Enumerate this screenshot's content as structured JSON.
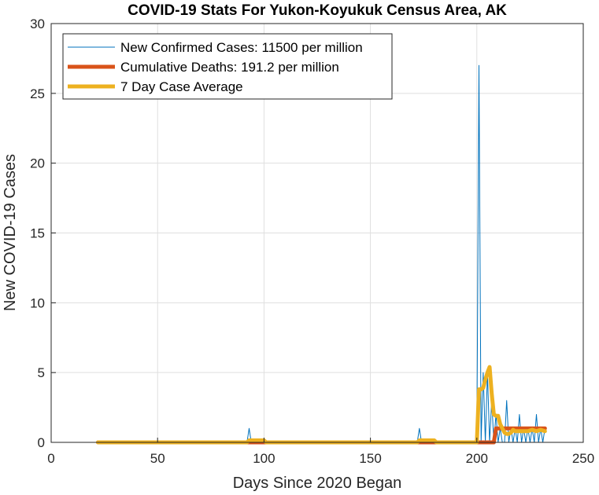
{
  "chart_data": {
    "type": "line",
    "title": "COVID-19 Stats For Yukon-Koyukuk Census Area, AK",
    "xlabel": "Days Since 2020 Began",
    "ylabel": "New COVID-19 Cases",
    "xlim": [
      0,
      250
    ],
    "ylim": [
      0,
      30
    ],
    "xticks": [
      0,
      50,
      100,
      150,
      200,
      250
    ],
    "yticks": [
      0,
      5,
      10,
      15,
      20,
      25,
      30
    ],
    "grid": true,
    "legend_position": "top-left",
    "series": [
      {
        "name": "New Confirmed Cases: 11500 per million",
        "color": "#0072BD",
        "width": 1,
        "x": [
          22,
          92,
          93,
          94,
          172,
          173,
          174,
          199,
          200,
          201,
          202,
          203,
          204,
          205,
          206,
          207,
          208,
          209,
          210,
          211,
          212,
          213,
          214,
          215,
          216,
          217,
          218,
          219,
          220,
          221,
          222,
          223,
          224,
          225,
          226,
          227,
          228,
          229,
          230,
          231,
          232
        ],
        "y": [
          0,
          0,
          1,
          0,
          0,
          1,
          0,
          0,
          0,
          27,
          0,
          5,
          0,
          5,
          0,
          3,
          0,
          2,
          0,
          1,
          0,
          0,
          3,
          0,
          1,
          0,
          1,
          0,
          2,
          0,
          1,
          0,
          1,
          0,
          1,
          0,
          2,
          0,
          1,
          0,
          1
        ]
      },
      {
        "name": "Cumulative Deaths: 191.2 per million",
        "color": "#D95319",
        "width": 5,
        "x": [
          22,
          92,
          93,
          96,
          97,
          172,
          173,
          176,
          177,
          199,
          205,
          206,
          207,
          208,
          209,
          232
        ],
        "y": [
          0,
          0,
          0,
          0,
          0,
          0,
          0,
          0,
          0,
          0,
          0,
          0,
          0,
          0,
          1,
          1
        ]
      },
      {
        "name": "7 Day Case Average",
        "color": "#EDB120",
        "width": 5,
        "x": [
          22,
          92,
          93,
          94,
          100,
          101,
          172,
          173,
          174,
          180,
          181,
          199,
          200,
          201,
          202,
          203,
          204,
          205,
          206,
          207,
          208,
          209,
          210,
          211,
          212,
          213,
          214,
          215,
          216,
          217,
          218,
          220,
          222,
          224,
          226,
          228,
          230,
          232
        ],
        "y": [
          0,
          0,
          0.14,
          0.14,
          0.14,
          0,
          0,
          0.14,
          0.14,
          0.14,
          0,
          0,
          0,
          3.8,
          3.8,
          3.9,
          4.5,
          5.0,
          5.4,
          3.5,
          2.0,
          1.9,
          1.9,
          1.3,
          1.0,
          0.7,
          0.6,
          0.6,
          0.7,
          0.9,
          0.8,
          0.8,
          0.8,
          0.8,
          0.9,
          0.8,
          0.9,
          0.8
        ]
      }
    ]
  }
}
